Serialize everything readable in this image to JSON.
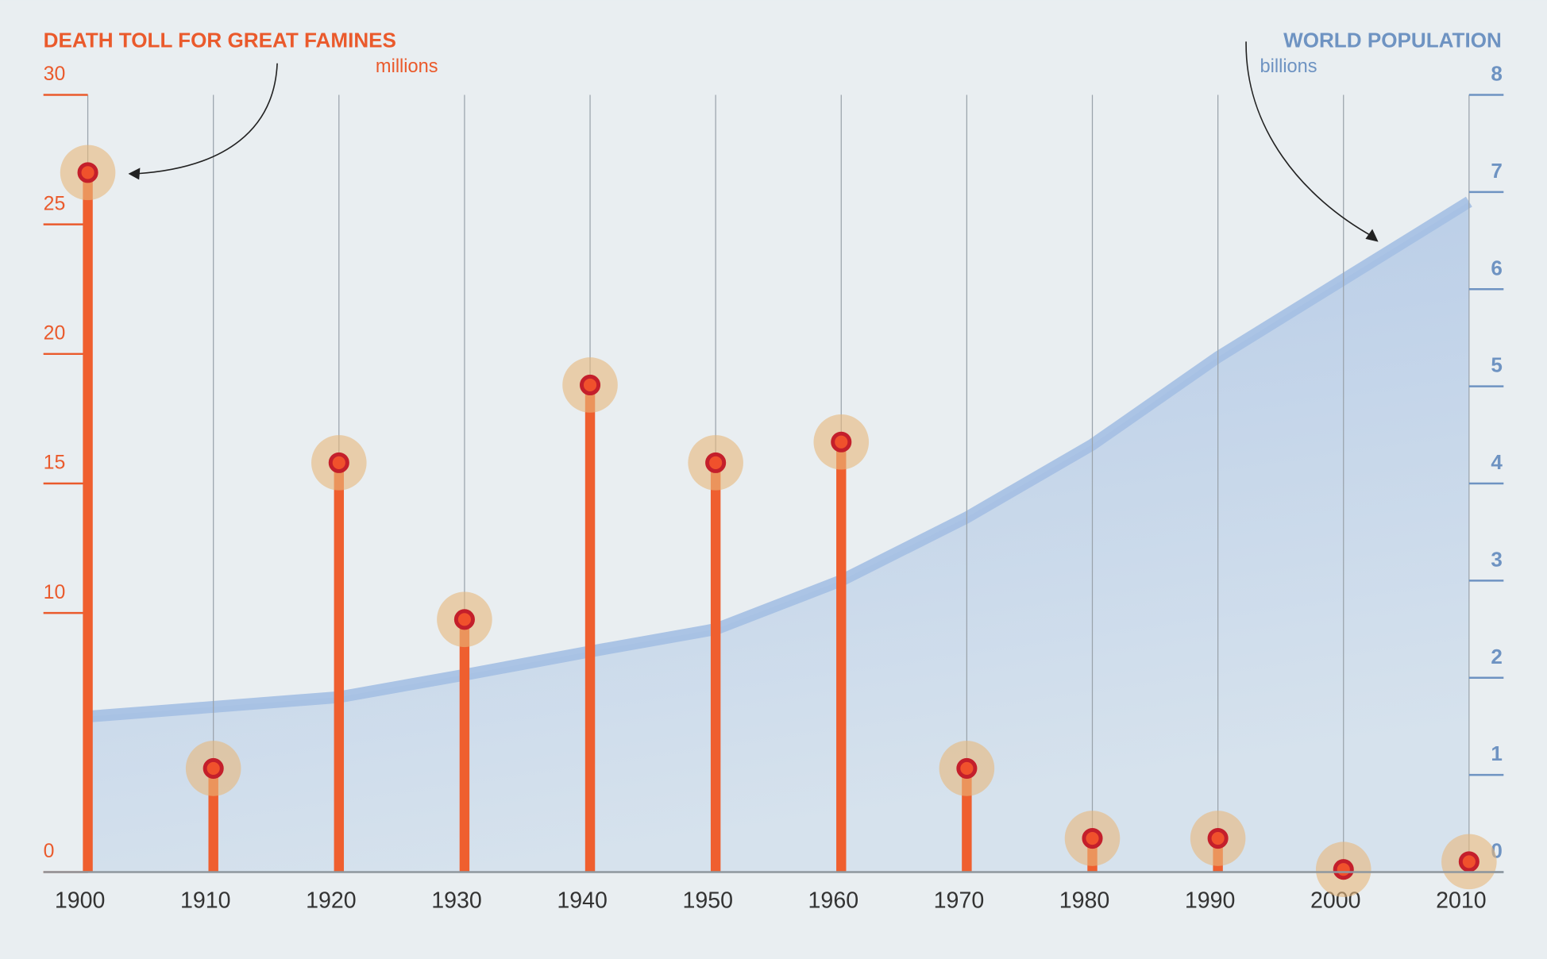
{
  "chart_data": {
    "type": "lollipop",
    "ylabel": "DEATH TOLL FOR GREAT FAMINES",
    "ylabel_unit": "millions",
    "y2label": "WORLD POPULATION",
    "y2label_unit": "billions",
    "x": [
      1900,
      1910,
      1920,
      1930,
      1940,
      1950,
      1960,
      1970,
      1980,
      1990,
      2000,
      2010
    ],
    "xlim": [
      1900,
      2010
    ],
    "xticks": [
      1900,
      1910,
      1920,
      1930,
      1940,
      1950,
      1960,
      1970,
      1980,
      1990,
      2000,
      2010
    ],
    "ylim": [
      0,
      30
    ],
    "yticks": [
      0,
      10,
      15,
      20,
      25,
      30
    ],
    "y2lim": [
      0,
      8
    ],
    "y2ticks": [
      0,
      1,
      2,
      3,
      4,
      5,
      6,
      7,
      8
    ],
    "grid": true,
    "series": [
      {
        "type": "lollipop",
        "color": "#ef5f2f",
        "values": [
          27,
          4,
          15.8,
          9.75,
          18.8,
          15.8,
          16.6,
          4,
          1.3,
          1.3,
          0.1,
          0.4
        ]
      },
      {
        "type": "area",
        "axis": "y2",
        "color": "#a4bfe3",
        "values": [
          1.6,
          1.7,
          1.8,
          2.03,
          2.27,
          2.5,
          3.0,
          3.65,
          4.4,
          5.3,
          6.1,
          6.9
        ]
      }
    ]
  }
}
